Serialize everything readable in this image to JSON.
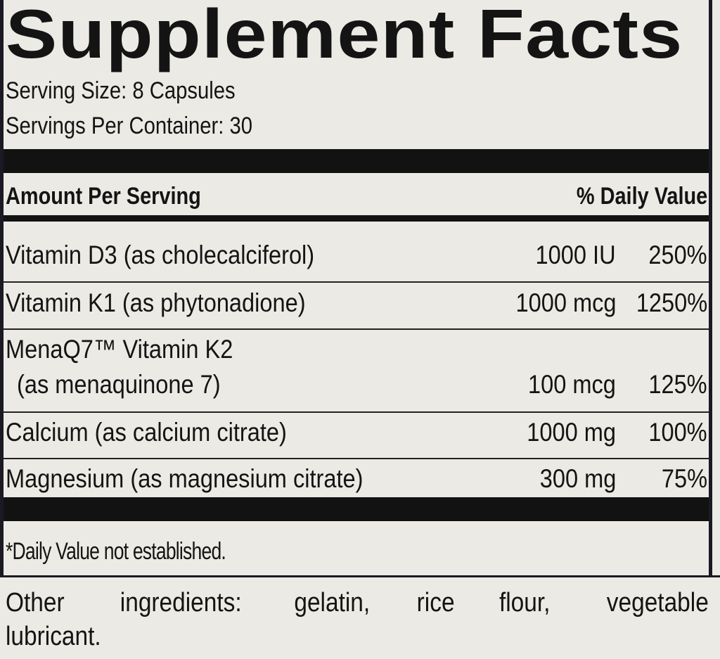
{
  "title": "Supplement Facts",
  "serving_size": "Serving Size: 8 Capsules",
  "servings_per_container": "Servings Per Container: 30",
  "header": {
    "amount": "Amount Per Serving",
    "dv": "% Daily Value"
  },
  "rows": [
    {
      "name": "Vitamin D3 (as cholecalciferol)",
      "amount": "1000 IU",
      "dv": "250%"
    },
    {
      "name": "Vitamin K1 (as phytonadione)",
      "amount": "1000 mcg",
      "dv": "1250%"
    },
    {
      "name": "MenaQ7™ Vitamin K2",
      "name2": "(as menaquinone 7)",
      "amount": "100 mcg",
      "dv": "125%"
    },
    {
      "name": "Calcium (as calcium citrate)",
      "amount": "1000 mg",
      "dv": "100%"
    },
    {
      "name": "Magnesium (as magnesium citrate)",
      "amount": "300 mg",
      "dv": "75%"
    }
  ],
  "footnote": "*Daily Value not established.",
  "other_ingredients": {
    "line1": [
      "Other",
      "ingredients:",
      "gelatin,",
      "rice",
      "flour,",
      "vegetable"
    ],
    "line2": "lubricant."
  }
}
